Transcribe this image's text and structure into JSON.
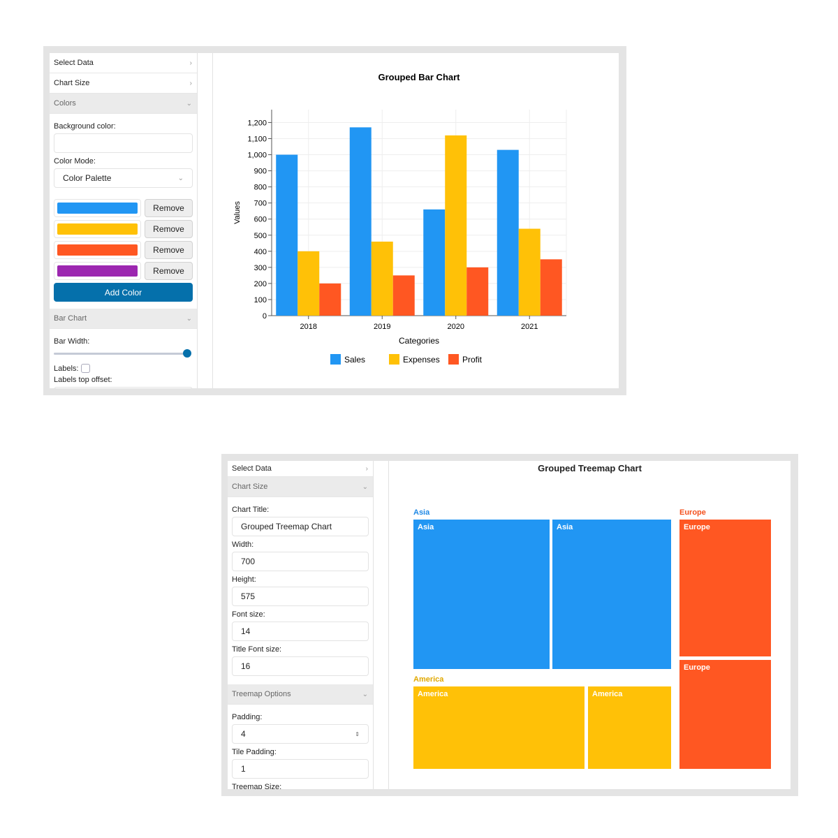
{
  "top": {
    "sidebar": {
      "select_data": "Select Data",
      "chart_size": "Chart Size",
      "colors": "Colors",
      "bg_label": "Background color:",
      "bg_value": "",
      "mode_label": "Color Mode:",
      "mode_value": "Color Palette",
      "palette": [
        "#2196f3",
        "#ffc107",
        "#ff5722",
        "#9c27b0"
      ],
      "remove_label": "Remove",
      "add_color": "Add Color",
      "bar_chart": "Bar Chart",
      "bar_width_label": "Bar Width:",
      "bar_width_value": 1.0,
      "labels_label": "Labels:",
      "labels_checked": false,
      "labels_offset_label": "Labels top offset:"
    }
  },
  "chart_data": [
    {
      "type": "bar",
      "title": "Grouped Bar Chart",
      "xlabel": "Categories",
      "ylabel": "Values",
      "categories": [
        "2018",
        "2019",
        "2020",
        "2021"
      ],
      "series": [
        {
          "name": "Sales",
          "color": "#2196f3",
          "values": [
            1000,
            1170,
            660,
            1030
          ]
        },
        {
          "name": "Expenses",
          "color": "#ffc107",
          "values": [
            400,
            460,
            1120,
            540
          ]
        },
        {
          "name": "Profit",
          "color": "#ff5722",
          "values": [
            200,
            250,
            300,
            350
          ]
        }
      ],
      "ylim": [
        0,
        1280
      ],
      "yticks": [
        "0",
        "100",
        "200",
        "300",
        "400",
        "500",
        "600",
        "700",
        "800",
        "900",
        "1,000",
        "1,100",
        "1,200"
      ],
      "grid": true,
      "legend": "bottom"
    },
    {
      "type": "treemap",
      "title": "Grouped Treemap Chart",
      "groups": [
        {
          "name": "Asia",
          "color": "#2196f3",
          "label_color": "#1e88e5",
          "tiles": [
            "Asia",
            "Asia"
          ]
        },
        {
          "name": "America",
          "color": "#ffc107",
          "label_color": "#e0a800",
          "tiles": [
            "America",
            "America"
          ]
        },
        {
          "name": "Europe",
          "color": "#ff5722",
          "label_color": "#f4511e",
          "tiles": [
            "Europe",
            "Europe"
          ]
        }
      ]
    }
  ],
  "bottom": {
    "sidebar": {
      "select_data": "Select Data",
      "chart_size": "Chart Size",
      "title_label": "Chart Title:",
      "title_value": "Grouped Treemap Chart",
      "width_label": "Width:",
      "width_value": "700",
      "height_label": "Height:",
      "height_value": "575",
      "font_label": "Font size:",
      "font_value": "14",
      "title_font_label": "Title Font size:",
      "title_font_value": "16",
      "treemap_options": "Treemap Options",
      "padding_label": "Padding:",
      "padding_value": "4",
      "tile_padding_label": "Tile Padding:",
      "tile_padding_value": "1",
      "treemap_size_label": "Treemap Size:"
    }
  }
}
